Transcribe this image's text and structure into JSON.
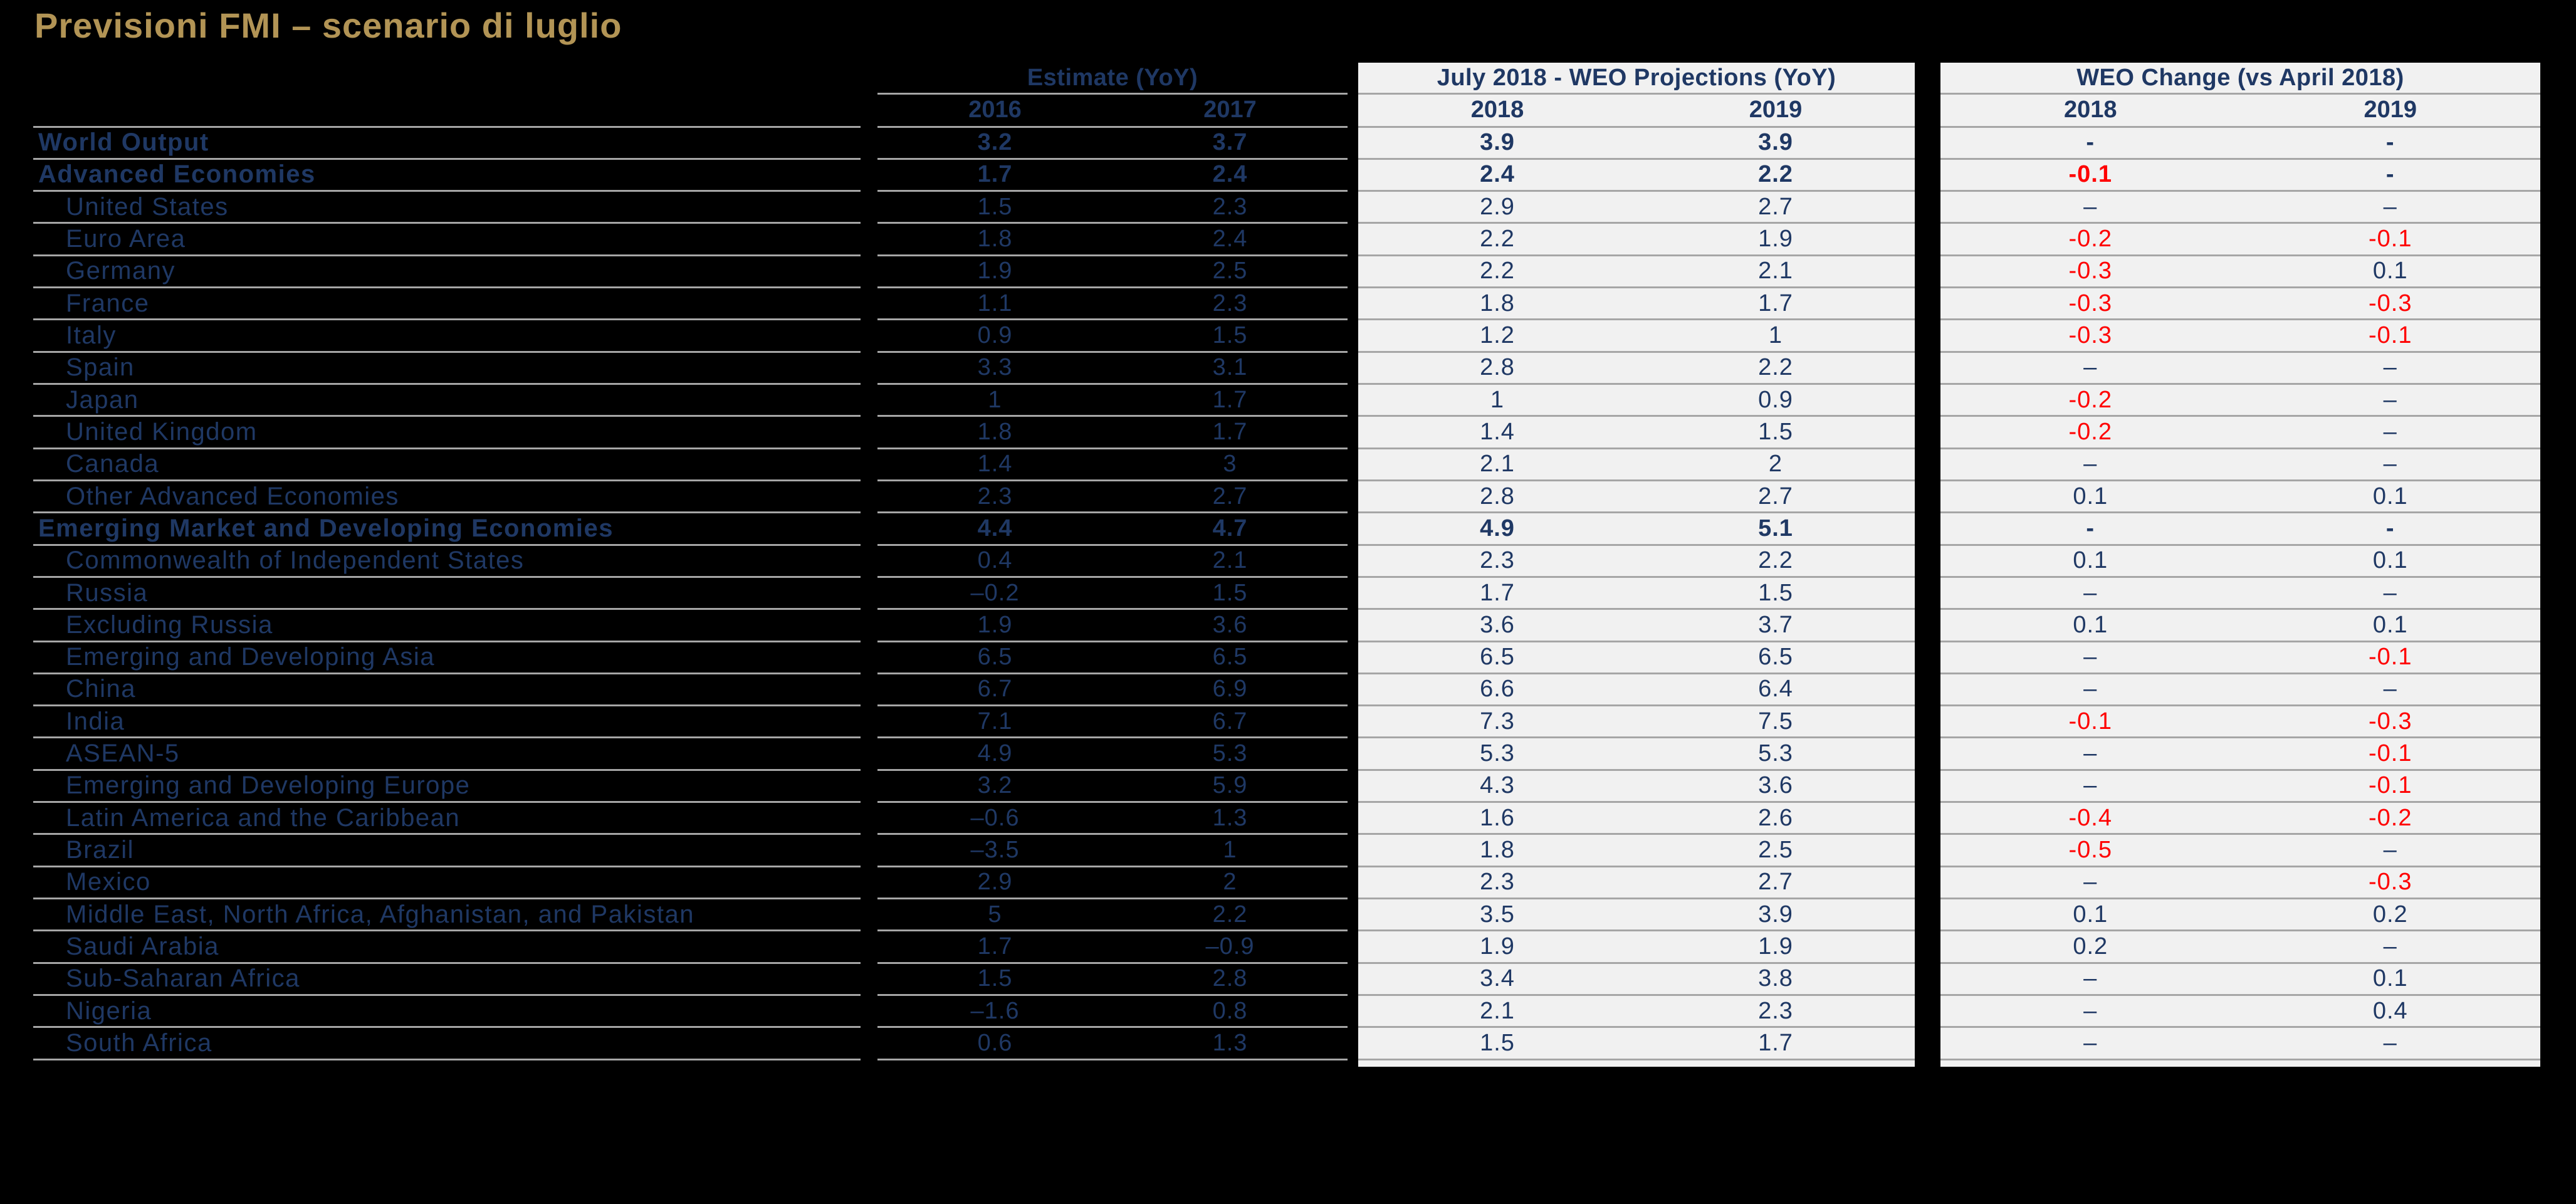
{
  "title": "Previsioni FMI – scenario di luglio",
  "colors": {
    "background": "#000000",
    "title_gold": "#B29455",
    "navy": "#1F3864",
    "negative_red": "#FF0000",
    "block_background": "#F1F1F1",
    "gridline_gray": "#A6A6A6"
  },
  "header": {
    "estimate": {
      "label": "Estimate (YoY)",
      "years": [
        "2016",
        "2017"
      ]
    },
    "july": {
      "label": "July 2018 - WEO Projections (YoY)",
      "years": [
        "2018",
        "2019"
      ]
    },
    "weo": {
      "label": "WEO Change (vs April 2018)",
      "years": [
        "2018",
        "2019"
      ]
    }
  },
  "rows": [
    {
      "label": "World Output",
      "bold": true,
      "indent": false,
      "values": [
        "3.2",
        "3.7",
        "3.9",
        "3.9",
        "-",
        "-"
      ]
    },
    {
      "label": "Advanced Economies",
      "bold": true,
      "indent": false,
      "values": [
        "1.7",
        "2.4",
        "2.4",
        "2.2",
        "-0.1",
        "-"
      ]
    },
    {
      "label": "United States",
      "bold": false,
      "indent": true,
      "values": [
        "1.5",
        "2.3",
        "2.9",
        "2.7",
        "–",
        "–"
      ]
    },
    {
      "label": "Euro Area",
      "bold": false,
      "indent": true,
      "values": [
        "1.8",
        "2.4",
        "2.2",
        "1.9",
        "-0.2",
        "-0.1"
      ]
    },
    {
      "label": "Germany",
      "bold": false,
      "indent": true,
      "values": [
        "1.9",
        "2.5",
        "2.2",
        "2.1",
        "-0.3",
        "0.1"
      ]
    },
    {
      "label": "France",
      "bold": false,
      "indent": true,
      "values": [
        "1.1",
        "2.3",
        "1.8",
        "1.7",
        "-0.3",
        "-0.3"
      ]
    },
    {
      "label": "Italy",
      "bold": false,
      "indent": true,
      "values": [
        "0.9",
        "1.5",
        "1.2",
        "1",
        "-0.3",
        "-0.1"
      ]
    },
    {
      "label": "Spain",
      "bold": false,
      "indent": true,
      "values": [
        "3.3",
        "3.1",
        "2.8",
        "2.2",
        "–",
        "–"
      ]
    },
    {
      "label": "Japan",
      "bold": false,
      "indent": true,
      "values": [
        "1",
        "1.7",
        "1",
        "0.9",
        "-0.2",
        "–"
      ]
    },
    {
      "label": "United Kingdom",
      "bold": false,
      "indent": true,
      "values": [
        "1.8",
        "1.7",
        "1.4",
        "1.5",
        "-0.2",
        "–"
      ]
    },
    {
      "label": "Canada",
      "bold": false,
      "indent": true,
      "values": [
        "1.4",
        "3",
        "2.1",
        "2",
        "–",
        "–"
      ]
    },
    {
      "label": "Other Advanced Economies",
      "bold": false,
      "indent": true,
      "values": [
        "2.3",
        "2.7",
        "2.8",
        "2.7",
        "0.1",
        "0.1"
      ]
    },
    {
      "label": "Emerging Market and Developing Economies",
      "bold": true,
      "indent": false,
      "values": [
        "4.4",
        "4.7",
        "4.9",
        "5.1",
        "-",
        "-"
      ]
    },
    {
      "label": "Commonwealth of Independent States",
      "bold": false,
      "indent": true,
      "values": [
        "0.4",
        "2.1",
        "2.3",
        "2.2",
        "0.1",
        "0.1"
      ]
    },
    {
      "label": "Russia",
      "bold": false,
      "indent": true,
      "values": [
        "–0.2",
        "1.5",
        "1.7",
        "1.5",
        "–",
        "–"
      ]
    },
    {
      "label": "Excluding Russia",
      "bold": false,
      "indent": true,
      "values": [
        "1.9",
        "3.6",
        "3.6",
        "3.7",
        "0.1",
        "0.1"
      ]
    },
    {
      "label": "Emerging and Developing Asia",
      "bold": false,
      "indent": true,
      "values": [
        "6.5",
        "6.5",
        "6.5",
        "6.5",
        "–",
        "-0.1"
      ]
    },
    {
      "label": "China",
      "bold": false,
      "indent": true,
      "values": [
        "6.7",
        "6.9",
        "6.6",
        "6.4",
        "–",
        "–"
      ]
    },
    {
      "label": "India",
      "bold": false,
      "indent": true,
      "values": [
        "7.1",
        "6.7",
        "7.3",
        "7.5",
        "-0.1",
        "-0.3"
      ]
    },
    {
      "label": "ASEAN-5",
      "bold": false,
      "indent": true,
      "values": [
        "4.9",
        "5.3",
        "5.3",
        "5.3",
        "–",
        "-0.1"
      ]
    },
    {
      "label": "Emerging and Developing Europe",
      "bold": false,
      "indent": true,
      "values": [
        "3.2",
        "5.9",
        "4.3",
        "3.6",
        "–",
        "-0.1"
      ]
    },
    {
      "label": "Latin America and the Caribbean",
      "bold": false,
      "indent": true,
      "values": [
        "–0.6",
        "1.3",
        "1.6",
        "2.6",
        "-0.4",
        "-0.2"
      ]
    },
    {
      "label": "Brazil",
      "bold": false,
      "indent": true,
      "values": [
        "–3.5",
        "1",
        "1.8",
        "2.5",
        "-0.5",
        "–"
      ]
    },
    {
      "label": "Mexico",
      "bold": false,
      "indent": true,
      "values": [
        "2.9",
        "2",
        "2.3",
        "2.7",
        "–",
        "-0.3"
      ]
    },
    {
      "label": "Middle East, North Africa, Afghanistan, and Pakistan",
      "bold": false,
      "indent": true,
      "values": [
        "5",
        "2.2",
        "3.5",
        "3.9",
        "0.1",
        "0.2"
      ]
    },
    {
      "label": "Saudi Arabia",
      "bold": false,
      "indent": true,
      "values": [
        "1.7",
        "–0.9",
        "1.9",
        "1.9",
        "0.2",
        "–"
      ]
    },
    {
      "label": "Sub-Saharan Africa",
      "bold": false,
      "indent": true,
      "values": [
        "1.5",
        "2.8",
        "3.4",
        "3.8",
        "–",
        "0.1"
      ]
    },
    {
      "label": "Nigeria",
      "bold": false,
      "indent": true,
      "values": [
        "–1.6",
        "0.8",
        "2.1",
        "2.3",
        "–",
        "0.4"
      ]
    },
    {
      "label": "South Africa",
      "bold": false,
      "indent": true,
      "values": [
        "0.6",
        "1.3",
        "1.5",
        "1.7",
        "–",
        "–"
      ]
    }
  ]
}
